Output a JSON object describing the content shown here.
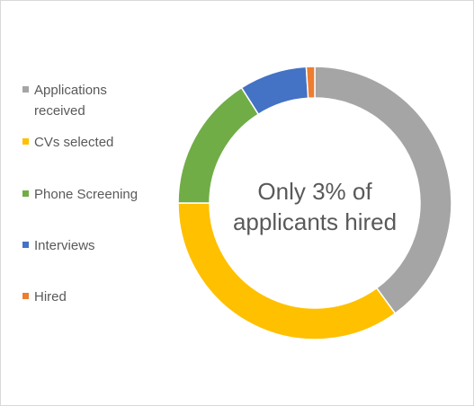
{
  "chart_data": {
    "type": "doughnut",
    "categories": [
      "Applications received",
      "CVs selected",
      "Phone Screening",
      "Interviews",
      "Hired"
    ],
    "legend_lines": [
      [
        "Applications",
        "received"
      ],
      [
        "CVs selected"
      ],
      [
        "Phone Screening"
      ],
      [
        "Interviews"
      ],
      [
        "Hired"
      ]
    ],
    "values": [
      40,
      35,
      16,
      8,
      1
    ],
    "colors": [
      "#a5a5a5",
      "#ffc000",
      "#70ad47",
      "#4472c4",
      "#ed7d31"
    ],
    "center_text": [
      "Only 3% of",
      "applicants hired"
    ],
    "legend": "left"
  }
}
